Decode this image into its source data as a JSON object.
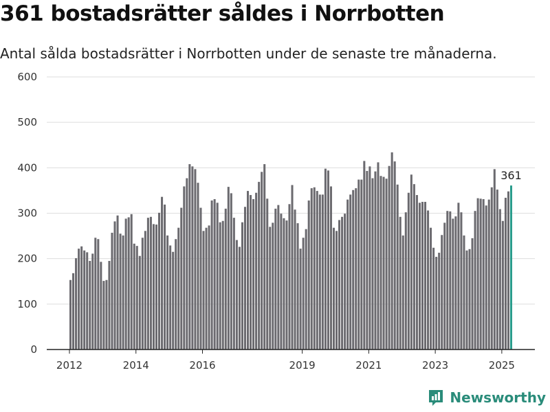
{
  "chart_data": {
    "type": "bar",
    "title": "361 bostadsrätter såldes i Norrbotten",
    "subtitle": "Antal sålda bostadsrätter i Norrbotten under de senaste tre månaderna.",
    "ylim": [
      0,
      600
    ],
    "yticks": [
      "0",
      "100",
      "200",
      "300",
      "400",
      "500",
      "600"
    ],
    "xticks": [
      {
        "label": "2012",
        "index": 0
      },
      {
        "label": "2014",
        "index": 24
      },
      {
        "label": "2016",
        "index": 48
      },
      {
        "label": "2019",
        "index": 84
      },
      {
        "label": "2021",
        "index": 108
      },
      {
        "label": "2023",
        "index": 132
      },
      {
        "label": "2025",
        "index": 156
      }
    ],
    "grid": true,
    "start": "2012-01",
    "values": [
      153,
      168,
      201,
      222,
      227,
      218,
      214,
      195,
      211,
      246,
      243,
      193,
      151,
      153,
      195,
      257,
      282,
      295,
      255,
      251,
      288,
      291,
      298,
      233,
      228,
      206,
      246,
      261,
      290,
      292,
      276,
      275,
      301,
      336,
      319,
      251,
      229,
      215,
      243,
      268,
      312,
      359,
      377,
      408,
      403,
      397,
      367,
      312,
      261,
      268,
      273,
      328,
      331,
      323,
      280,
      283,
      310,
      358,
      344,
      290,
      241,
      226,
      280,
      314,
      349,
      340,
      331,
      345,
      369,
      391,
      408,
      332,
      270,
      279,
      310,
      318,
      299,
      289,
      284,
      320,
      362,
      308,
      278,
      222,
      246,
      265,
      328,
      355,
      357,
      349,
      341,
      341,
      398,
      394,
      359,
      268,
      261,
      285,
      292,
      299,
      330,
      341,
      351,
      355,
      374,
      374,
      415,
      393,
      403,
      377,
      392,
      412,
      382,
      380,
      376,
      404,
      434,
      414,
      363,
      292,
      251,
      302,
      345,
      385,
      364,
      340,
      323,
      325,
      325,
      306,
      268,
      224,
      204,
      213,
      252,
      279,
      305,
      304,
      288,
      293,
      323,
      302,
      251,
      218,
      221,
      245,
      305,
      333,
      332,
      331,
      317,
      330,
      357,
      397,
      352,
      309,
      283,
      334,
      348,
      361
    ],
    "last_value_label": "361",
    "bar_color": "#6b6a6f",
    "highlight_color": "#2a9c8c",
    "gridline_color": "#dddddd"
  },
  "brand": {
    "name": "Newsworthy",
    "logo_icon": "newsworthy-chart-logo-icon",
    "color": "#2a8c7a"
  }
}
